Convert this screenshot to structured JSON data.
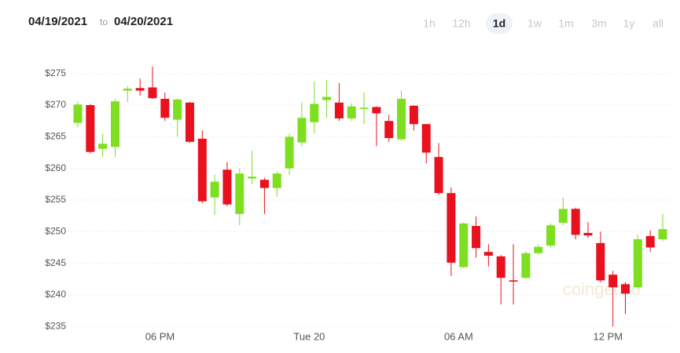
{
  "header": {
    "from": "04/19/2021",
    "to_word": "to",
    "to": "04/20/2021"
  },
  "range_buttons": [
    "1h",
    "12h",
    "1d",
    "1w",
    "1m",
    "3m",
    "1y",
    "all"
  ],
  "selected_range": 2,
  "watermark": "coingecko",
  "chart_data": {
    "type": "candlestick",
    "categories": [
      null,
      null,
      null,
      null,
      null,
      null,
      null,
      "06 PM",
      null,
      null,
      null,
      null,
      null,
      null,
      null,
      null,
      null,
      null,
      null,
      "Tue 20",
      null,
      null,
      null,
      null,
      null,
      null,
      null,
      null,
      null,
      null,
      null,
      "06 AM",
      null,
      null,
      null,
      null,
      null,
      null,
      null,
      null,
      null,
      null,
      null,
      "12 PM",
      null,
      null,
      null,
      null
    ],
    "open": [
      267.2,
      270.0,
      263.1,
      263.4,
      272.3,
      272.7,
      272.8,
      271.0,
      267.7,
      270.4,
      264.7,
      255.4,
      259.8,
      252.8,
      258.4,
      258.2,
      256.9,
      260.0,
      264.1,
      267.3,
      270.8,
      270.4,
      267.9,
      269.4,
      269.7,
      267.5,
      264.6,
      269.9,
      267.0,
      261.8,
      256.1,
      244.4,
      250.9,
      246.8,
      246.1,
      242.3,
      242.7,
      246.6,
      247.8,
      251.4,
      253.6,
      249.8,
      248.2,
      243.2,
      241.7,
      241.2,
      249.3,
      248.8
    ],
    "high": [
      270.6,
      270.2,
      265.5,
      271.0,
      273.0,
      274.2,
      276.1,
      272.0,
      271.1,
      270.5,
      266.0,
      259.0,
      261.0,
      260.0,
      262.8,
      258.5,
      259.5,
      265.5,
      270.5,
      273.8,
      274.0,
      273.5,
      270.3,
      272.0,
      269.8,
      268.5,
      272.3,
      270.0,
      267.0,
      264.0,
      257.0,
      251.5,
      252.4,
      248.0,
      246.3,
      248.0,
      246.9,
      248.0,
      251.3,
      255.4,
      253.8,
      251.5,
      250.0,
      243.8,
      242.0,
      249.5,
      250.2,
      252.8
    ],
    "low": [
      266.5,
      262.4,
      261.8,
      261.8,
      270.5,
      271.5,
      271.0,
      267.5,
      265.0,
      264.0,
      254.5,
      252.6,
      254.0,
      251.0,
      257.5,
      252.8,
      255.5,
      259.0,
      263.5,
      265.5,
      268.0,
      267.5,
      267.5,
      267.0,
      263.5,
      264.2,
      264.4,
      266.0,
      260.8,
      255.8,
      243.0,
      244.2,
      245.9,
      244.5,
      238.5,
      238.5,
      242.5,
      246.4,
      247.5,
      251.0,
      248.8,
      249.0,
      242.0,
      235.0,
      237.0,
      241.0,
      246.8,
      248.5
    ],
    "close": [
      270.1,
      262.6,
      263.9,
      270.6,
      272.6,
      272.3,
      271.1,
      268.0,
      270.9,
      264.2,
      254.8,
      257.9,
      254.3,
      259.2,
      258.7,
      256.9,
      259.2,
      265.0,
      268.0,
      270.2,
      271.3,
      267.9,
      269.8,
      269.6,
      268.7,
      264.8,
      271.0,
      267.0,
      262.5,
      256.1,
      245.1,
      251.3,
      247.4,
      246.2,
      242.7,
      242.1,
      246.6,
      247.6,
      251.0,
      253.6,
      249.5,
      249.4,
      242.3,
      241.2,
      240.2,
      248.8,
      247.5,
      250.4
    ],
    "up_color": "#7ddf20",
    "down_color": "#e8111d",
    "ylim": [
      233.3,
      276.7
    ],
    "yticks": [
      {
        "value": 235,
        "label": "$235"
      },
      {
        "value": 240,
        "label": "$240"
      },
      {
        "value": 245,
        "label": "$245"
      },
      {
        "value": 250,
        "label": "$250"
      },
      {
        "value": 255,
        "label": "$255"
      },
      {
        "value": 260,
        "label": "$260"
      },
      {
        "value": 265,
        "label": "$265"
      },
      {
        "value": 270,
        "label": "$270"
      },
      {
        "value": 275,
        "label": "$275"
      }
    ],
    "grid": true
  }
}
